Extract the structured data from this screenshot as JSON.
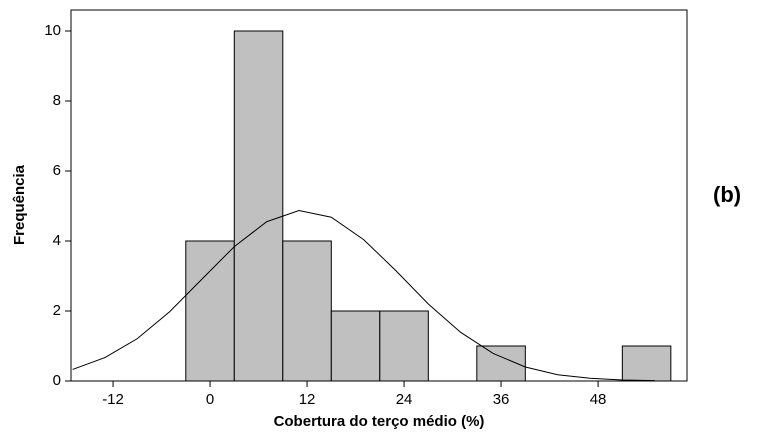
{
  "chart_data": {
    "type": "histogram",
    "xlabel": "Cobertura do terço médio (%)",
    "ylabel": "Frequência",
    "annotation": "(b)",
    "bins": [
      -3,
      3,
      9,
      15,
      21,
      27,
      33,
      39,
      45,
      51,
      57
    ],
    "values": [
      4,
      10,
      4,
      2,
      2,
      0,
      1,
      0,
      0,
      1
    ],
    "color": "#c0c0c0",
    "curve": {
      "color": "#000000",
      "x": [
        -17,
        -13,
        -9,
        -5,
        -1,
        3,
        7,
        11,
        15,
        19,
        23,
        27,
        31,
        35,
        39,
        43,
        47,
        51,
        55
      ],
      "values": [
        0.33,
        0.67,
        1.21,
        1.98,
        2.91,
        3.84,
        4.55,
        4.87,
        4.68,
        4.04,
        3.15,
        2.2,
        1.39,
        0.79,
        0.4,
        0.18,
        0.08,
        0.03,
        0.01
      ]
    },
    "xlim": [
      -17.2,
      59
    ],
    "ylim": [
      0,
      10.6
    ],
    "xticks": [
      -12,
      0,
      12,
      24,
      36,
      48
    ],
    "yticks": [
      0,
      2,
      4,
      6,
      8,
      10
    ]
  }
}
